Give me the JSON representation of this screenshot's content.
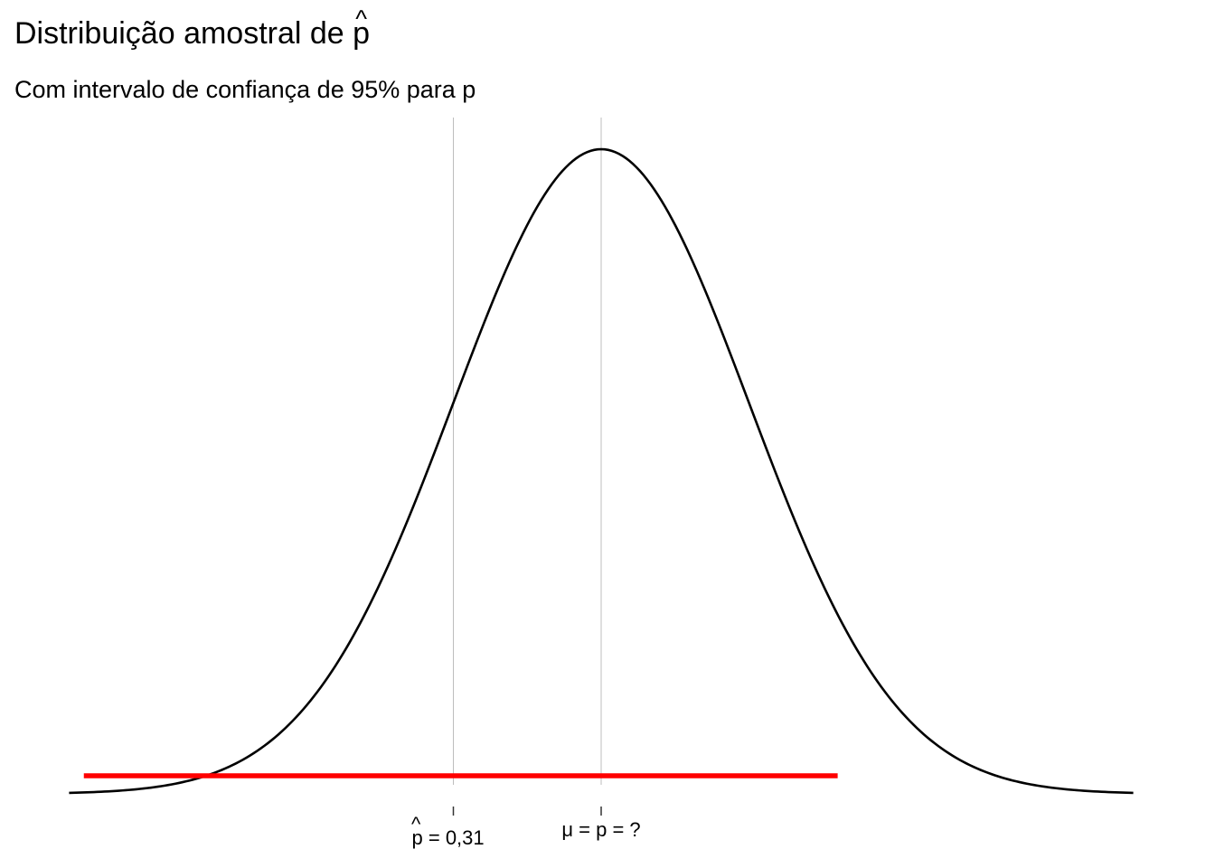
{
  "title": {
    "text": "Distribuição amostral de ",
    "symbol": "p",
    "symbol_accent": "^"
  },
  "subtitle": "Com intervalo de confiança de 95% para p",
  "chart_data": {
    "type": "line",
    "title": "Distribuição amostral de p̂",
    "subtitle": "Com intervalo de confiança de 95% para p",
    "xlabel": "",
    "ylabel": "",
    "grid": false,
    "axes_visible": false,
    "series": [
      {
        "kind": "normal-density-curve",
        "mean": 0,
        "sd": 1,
        "x_range": [
          -3.6,
          3.6
        ],
        "color": "#000000"
      }
    ],
    "reference_lines": [
      {
        "x": -1,
        "label_symbol": "p",
        "label_accent": "^",
        "label_suffix": " = 0,31",
        "color": "#bdbdbd"
      },
      {
        "x": 0,
        "label_text": "μ = p = ?",
        "color": "#bdbdbd"
      }
    ],
    "interval": {
      "from": -3.5,
      "to": 1.6,
      "color": "#ff0000",
      "label": "intervalo de confiança de 95%"
    },
    "xlim": [
      -3.6,
      3.6
    ]
  }
}
